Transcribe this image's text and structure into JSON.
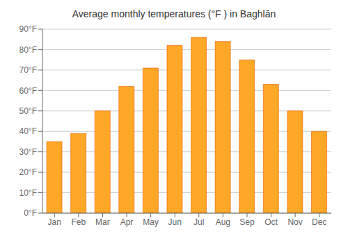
{
  "chart_data": {
    "type": "bar",
    "title": "Average monthly temperatures (°F ) in Baghlān",
    "categories": [
      "Jan",
      "Feb",
      "Mar",
      "Apr",
      "May",
      "Jun",
      "Jul",
      "Aug",
      "Sep",
      "Oct",
      "Nov",
      "Dec"
    ],
    "values": [
      35,
      39,
      50,
      62,
      71,
      82,
      86,
      84,
      75,
      63,
      50,
      40
    ],
    "color": "#FFA726",
    "ylim": [
      0,
      90
    ],
    "yticks": [
      {
        "value": 0,
        "label": "0°F"
      },
      {
        "value": 10,
        "label": "10°F"
      },
      {
        "value": 20,
        "label": "20°F"
      },
      {
        "value": 30,
        "label": "30°F"
      },
      {
        "value": 40,
        "label": "40°F"
      },
      {
        "value": 50,
        "label": "50°F"
      },
      {
        "value": 60,
        "label": "60°F"
      },
      {
        "value": 70,
        "label": "70°F"
      },
      {
        "value": 80,
        "label": "80°F"
      },
      {
        "value": 90,
        "label": "90°F"
      }
    ],
    "grid": true
  }
}
